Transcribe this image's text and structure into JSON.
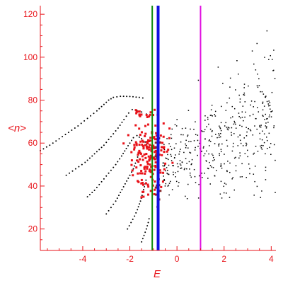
{
  "chart_data": {
    "type": "scatter",
    "xlabel": "E",
    "ylabel": "<n>",
    "xlim": [
      -5.8,
      4.2
    ],
    "ylim": [
      10,
      124
    ],
    "xticks": [
      -4,
      -2,
      0,
      2,
      4
    ],
    "yticks": [
      20,
      40,
      60,
      80,
      100,
      120
    ],
    "grid": false,
    "colors": {
      "axis": "#e8131a",
      "black_points": "#000000",
      "red_points": "#e8131a",
      "green_line": "#0a8a0a",
      "blue_line": "#1010e0",
      "magenta_line": "#e010e0"
    },
    "vertical_lines": [
      {
        "x": -1.05,
        "color": "#0a8a0a"
      },
      {
        "x": -0.8,
        "color": "#1010e0"
      },
      {
        "x": 1.0,
        "color": "#e010e0"
      }
    ],
    "curves": [
      {
        "points": [
          [
            -5.8,
            56.5
          ],
          [
            -5.4,
            59
          ],
          [
            -5.0,
            62
          ],
          [
            -4.6,
            65
          ],
          [
            -4.2,
            68
          ],
          [
            -3.8,
            71.5
          ],
          [
            -3.4,
            75
          ],
          [
            -3.1,
            78
          ],
          [
            -2.9,
            80
          ],
          [
            -2.7,
            81.3
          ],
          [
            -2.4,
            81.8
          ],
          [
            -2.0,
            81.7
          ],
          [
            -1.6,
            81.3
          ],
          [
            -1.3,
            80.7
          ]
        ]
      },
      {
        "points": [
          [
            -4.7,
            45
          ],
          [
            -4.3,
            48
          ],
          [
            -3.9,
            51
          ],
          [
            -3.5,
            55
          ],
          [
            -3.1,
            59
          ],
          [
            -2.8,
            63
          ],
          [
            -2.5,
            67
          ],
          [
            -2.25,
            71
          ],
          [
            -2.05,
            74
          ],
          [
            -1.9,
            75.6
          ],
          [
            -1.7,
            75.2
          ],
          [
            -1.5,
            74.5
          ],
          [
            -1.3,
            73.5
          ],
          [
            -1.15,
            73
          ]
        ]
      },
      {
        "points": [
          [
            -3.8,
            35
          ],
          [
            -3.5,
            38
          ],
          [
            -3.2,
            42
          ],
          [
            -2.9,
            46
          ],
          [
            -2.6,
            50
          ],
          [
            -2.35,
            54
          ],
          [
            -2.15,
            57.5
          ],
          [
            -2.0,
            60
          ],
          [
            -1.85,
            62.5
          ],
          [
            -1.7,
            63.5
          ],
          [
            -1.5,
            62
          ],
          [
            -1.35,
            60.5
          ],
          [
            -1.25,
            58
          ]
        ]
      },
      {
        "points": [
          [
            -3.0,
            27
          ],
          [
            -2.8,
            30
          ],
          [
            -2.6,
            33
          ],
          [
            -2.4,
            37
          ],
          [
            -2.2,
            41
          ],
          [
            -2.0,
            45
          ],
          [
            -1.85,
            48
          ],
          [
            -1.72,
            52
          ],
          [
            -1.62,
            55
          ],
          [
            -1.52,
            56.5
          ]
        ]
      },
      {
        "points": [
          [
            -2.1,
            20
          ],
          [
            -1.95,
            23
          ],
          [
            -1.8,
            26
          ],
          [
            -1.68,
            29
          ],
          [
            -1.55,
            33
          ],
          [
            -1.45,
            37
          ],
          [
            -1.35,
            41
          ],
          [
            -1.28,
            44.5
          ]
        ]
      },
      {
        "points": [
          [
            -1.5,
            14
          ],
          [
            -1.4,
            17
          ],
          [
            -1.3,
            20
          ],
          [
            -1.22,
            23
          ],
          [
            -1.15,
            26.5
          ]
        ]
      }
    ],
    "scatter_seed": 7
  }
}
